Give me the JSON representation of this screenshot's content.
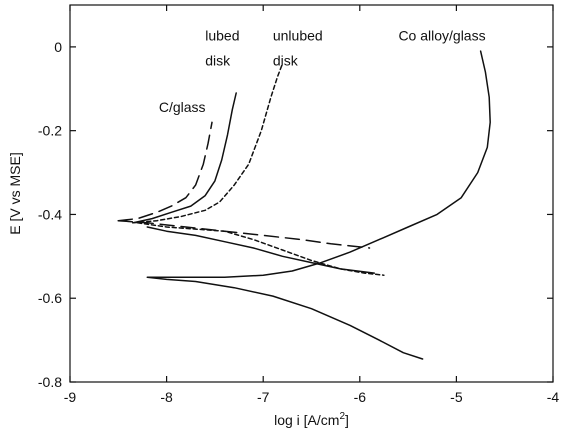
{
  "chart_data": {
    "type": "line",
    "title": "",
    "xlabel": "log i [A/cm",
    "xlabel_sup": "2",
    "xlabel_end": "]",
    "ylabel": "E [V vs MSE]",
    "xlim": [
      -9,
      -4
    ],
    "ylim": [
      -0.8,
      0.1
    ],
    "xticks": [
      -9,
      -8,
      -7,
      -6,
      -5,
      -4
    ],
    "yticks": [
      0,
      -0.2,
      -0.4,
      -0.6,
      -0.8
    ],
    "xtick_labels": [
      "-9",
      "-8",
      "-7",
      "-6",
      "-5",
      "-4"
    ],
    "ytick_labels": [
      "0",
      "-0.2",
      "-0.4",
      "-0.6",
      "-0.8"
    ],
    "grid": false,
    "legend": "none",
    "series": [
      {
        "name": "C/glass",
        "style": "long-dash",
        "x": [
          -8.5,
          -8.3,
          -8.1,
          -7.95,
          -7.8,
          -7.7,
          -7.62,
          -7.57,
          -7.53
        ],
        "y": [
          -0.415,
          -0.41,
          -0.395,
          -0.38,
          -0.36,
          -0.33,
          -0.28,
          -0.23,
          -0.18
        ],
        "x_return": [
          -8.5,
          -8.2,
          -7.8,
          -7.4,
          -7.0,
          -6.6,
          -6.3,
          -6.1,
          -5.9
        ],
        "y_return": [
          -0.415,
          -0.42,
          -0.43,
          -0.44,
          -0.45,
          -0.46,
          -0.47,
          -0.475,
          -0.48
        ]
      },
      {
        "name": "lubed disk",
        "style": "solid",
        "x": [
          -8.35,
          -8.15,
          -7.95,
          -7.75,
          -7.6,
          -7.5,
          -7.43,
          -7.37,
          -7.32,
          -7.28
        ],
        "y": [
          -0.42,
          -0.41,
          -0.395,
          -0.38,
          -0.355,
          -0.32,
          -0.27,
          -0.21,
          -0.15,
          -0.11
        ],
        "x_return": [
          -8.2,
          -8.0,
          -7.7,
          -7.4,
          -7.1,
          -6.8,
          -6.5,
          -6.2,
          -5.85
        ],
        "y_return": [
          -0.43,
          -0.44,
          -0.45,
          -0.465,
          -0.48,
          -0.5,
          -0.515,
          -0.53,
          -0.54
        ]
      },
      {
        "name": "unlubed disk",
        "style": "short-dash",
        "x": [
          -8.35,
          -8.1,
          -7.85,
          -7.6,
          -7.45,
          -7.3,
          -7.15,
          -7.02,
          -6.92,
          -6.85,
          -6.8
        ],
        "y": [
          -0.42,
          -0.415,
          -0.405,
          -0.39,
          -0.37,
          -0.33,
          -0.28,
          -0.2,
          -0.12,
          -0.07,
          -0.04
        ],
        "x_return": [
          -8.3,
          -8.0,
          -7.7,
          -7.4,
          -7.1,
          -6.8,
          -6.5,
          -6.2,
          -5.95,
          -5.75
        ],
        "y_return": [
          -0.42,
          -0.43,
          -0.435,
          -0.44,
          -0.46,
          -0.485,
          -0.51,
          -0.53,
          -0.54,
          -0.545
        ]
      },
      {
        "name": "Co alloy/glass",
        "style": "solid",
        "x": [
          -5.35,
          -5.55,
          -5.8,
          -6.1,
          -6.5,
          -6.9,
          -7.3,
          -7.7,
          -8.0,
          -8.2,
          -7.8,
          -7.4,
          -7.0,
          -6.7,
          -6.4,
          -6.1,
          -5.8,
          -5.5,
          -5.2,
          -4.95,
          -4.78,
          -4.68,
          -4.65,
          -4.66,
          -4.7,
          -4.75
        ],
        "y": [
          -0.745,
          -0.73,
          -0.7,
          -0.665,
          -0.625,
          -0.595,
          -0.575,
          -0.56,
          -0.555,
          -0.55,
          -0.55,
          -0.55,
          -0.545,
          -0.535,
          -0.515,
          -0.49,
          -0.46,
          -0.43,
          -0.4,
          -0.36,
          -0.3,
          -0.24,
          -0.18,
          -0.12,
          -0.06,
          -0.01
        ]
      }
    ],
    "annotations": [
      {
        "text": "C/glass",
        "x": -8.08,
        "y": -0.155
      },
      {
        "text": "lubed",
        "x": -7.6,
        "y": 0.015
      },
      {
        "text": "disk",
        "x": -7.6,
        "y": -0.045
      },
      {
        "text": "unlubed",
        "x": -6.9,
        "y": 0.015
      },
      {
        "text": "disk",
        "x": -6.9,
        "y": -0.045
      },
      {
        "text": "Co alloy/glass",
        "x": -5.6,
        "y": 0.015
      }
    ]
  }
}
